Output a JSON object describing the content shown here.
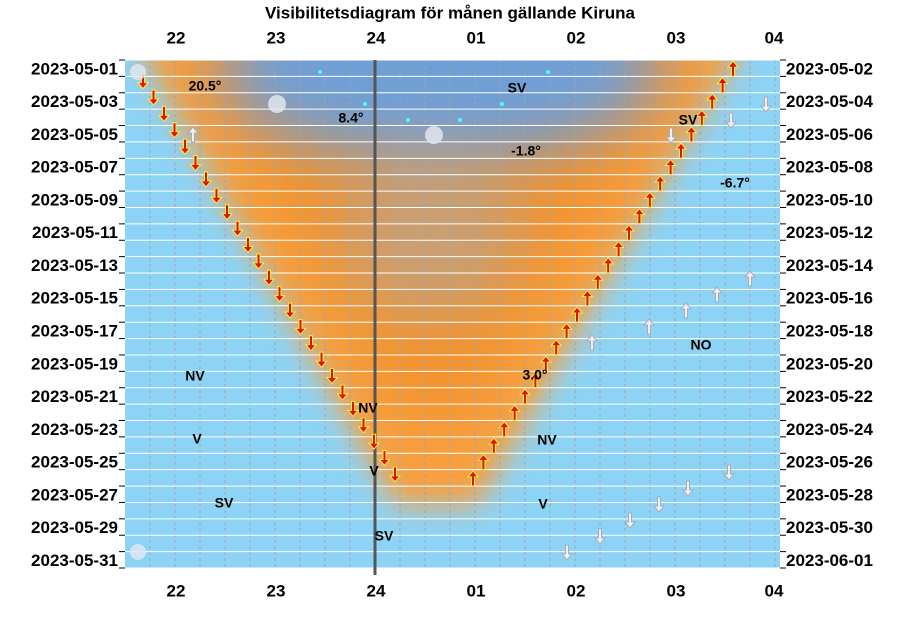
{
  "title": "Visibilitetsdiagram för månen gällande Kiruna",
  "hours": [
    "22",
    "23",
    "24",
    "01",
    "02",
    "03",
    "04"
  ],
  "left_dates": [
    "2023-05-01",
    "2023-05-03",
    "2023-05-05",
    "2023-05-07",
    "2023-05-09",
    "2023-05-11",
    "2023-05-13",
    "2023-05-15",
    "2023-05-17",
    "2023-05-19",
    "2023-05-21",
    "2023-05-23",
    "2023-05-25",
    "2023-05-27",
    "2023-05-29",
    "2023-05-31"
  ],
  "right_dates": [
    "2023-05-02",
    "2023-05-04",
    "2023-05-06",
    "2023-05-08",
    "2023-05-10",
    "2023-05-12",
    "2023-05-14",
    "2023-05-16",
    "2023-05-18",
    "2023-05-20",
    "2023-05-22",
    "2023-05-24",
    "2023-05-26",
    "2023-05-28",
    "2023-05-30",
    "2023-06-01"
  ],
  "annotations": [
    "20.5°",
    "SV",
    "8.4°",
    "SV",
    "-1.8°",
    "-6.7°",
    "NO",
    "3.0°",
    "NV",
    "NV",
    "NV",
    "V",
    "V",
    "SV",
    "V",
    "SV"
  ]
}
